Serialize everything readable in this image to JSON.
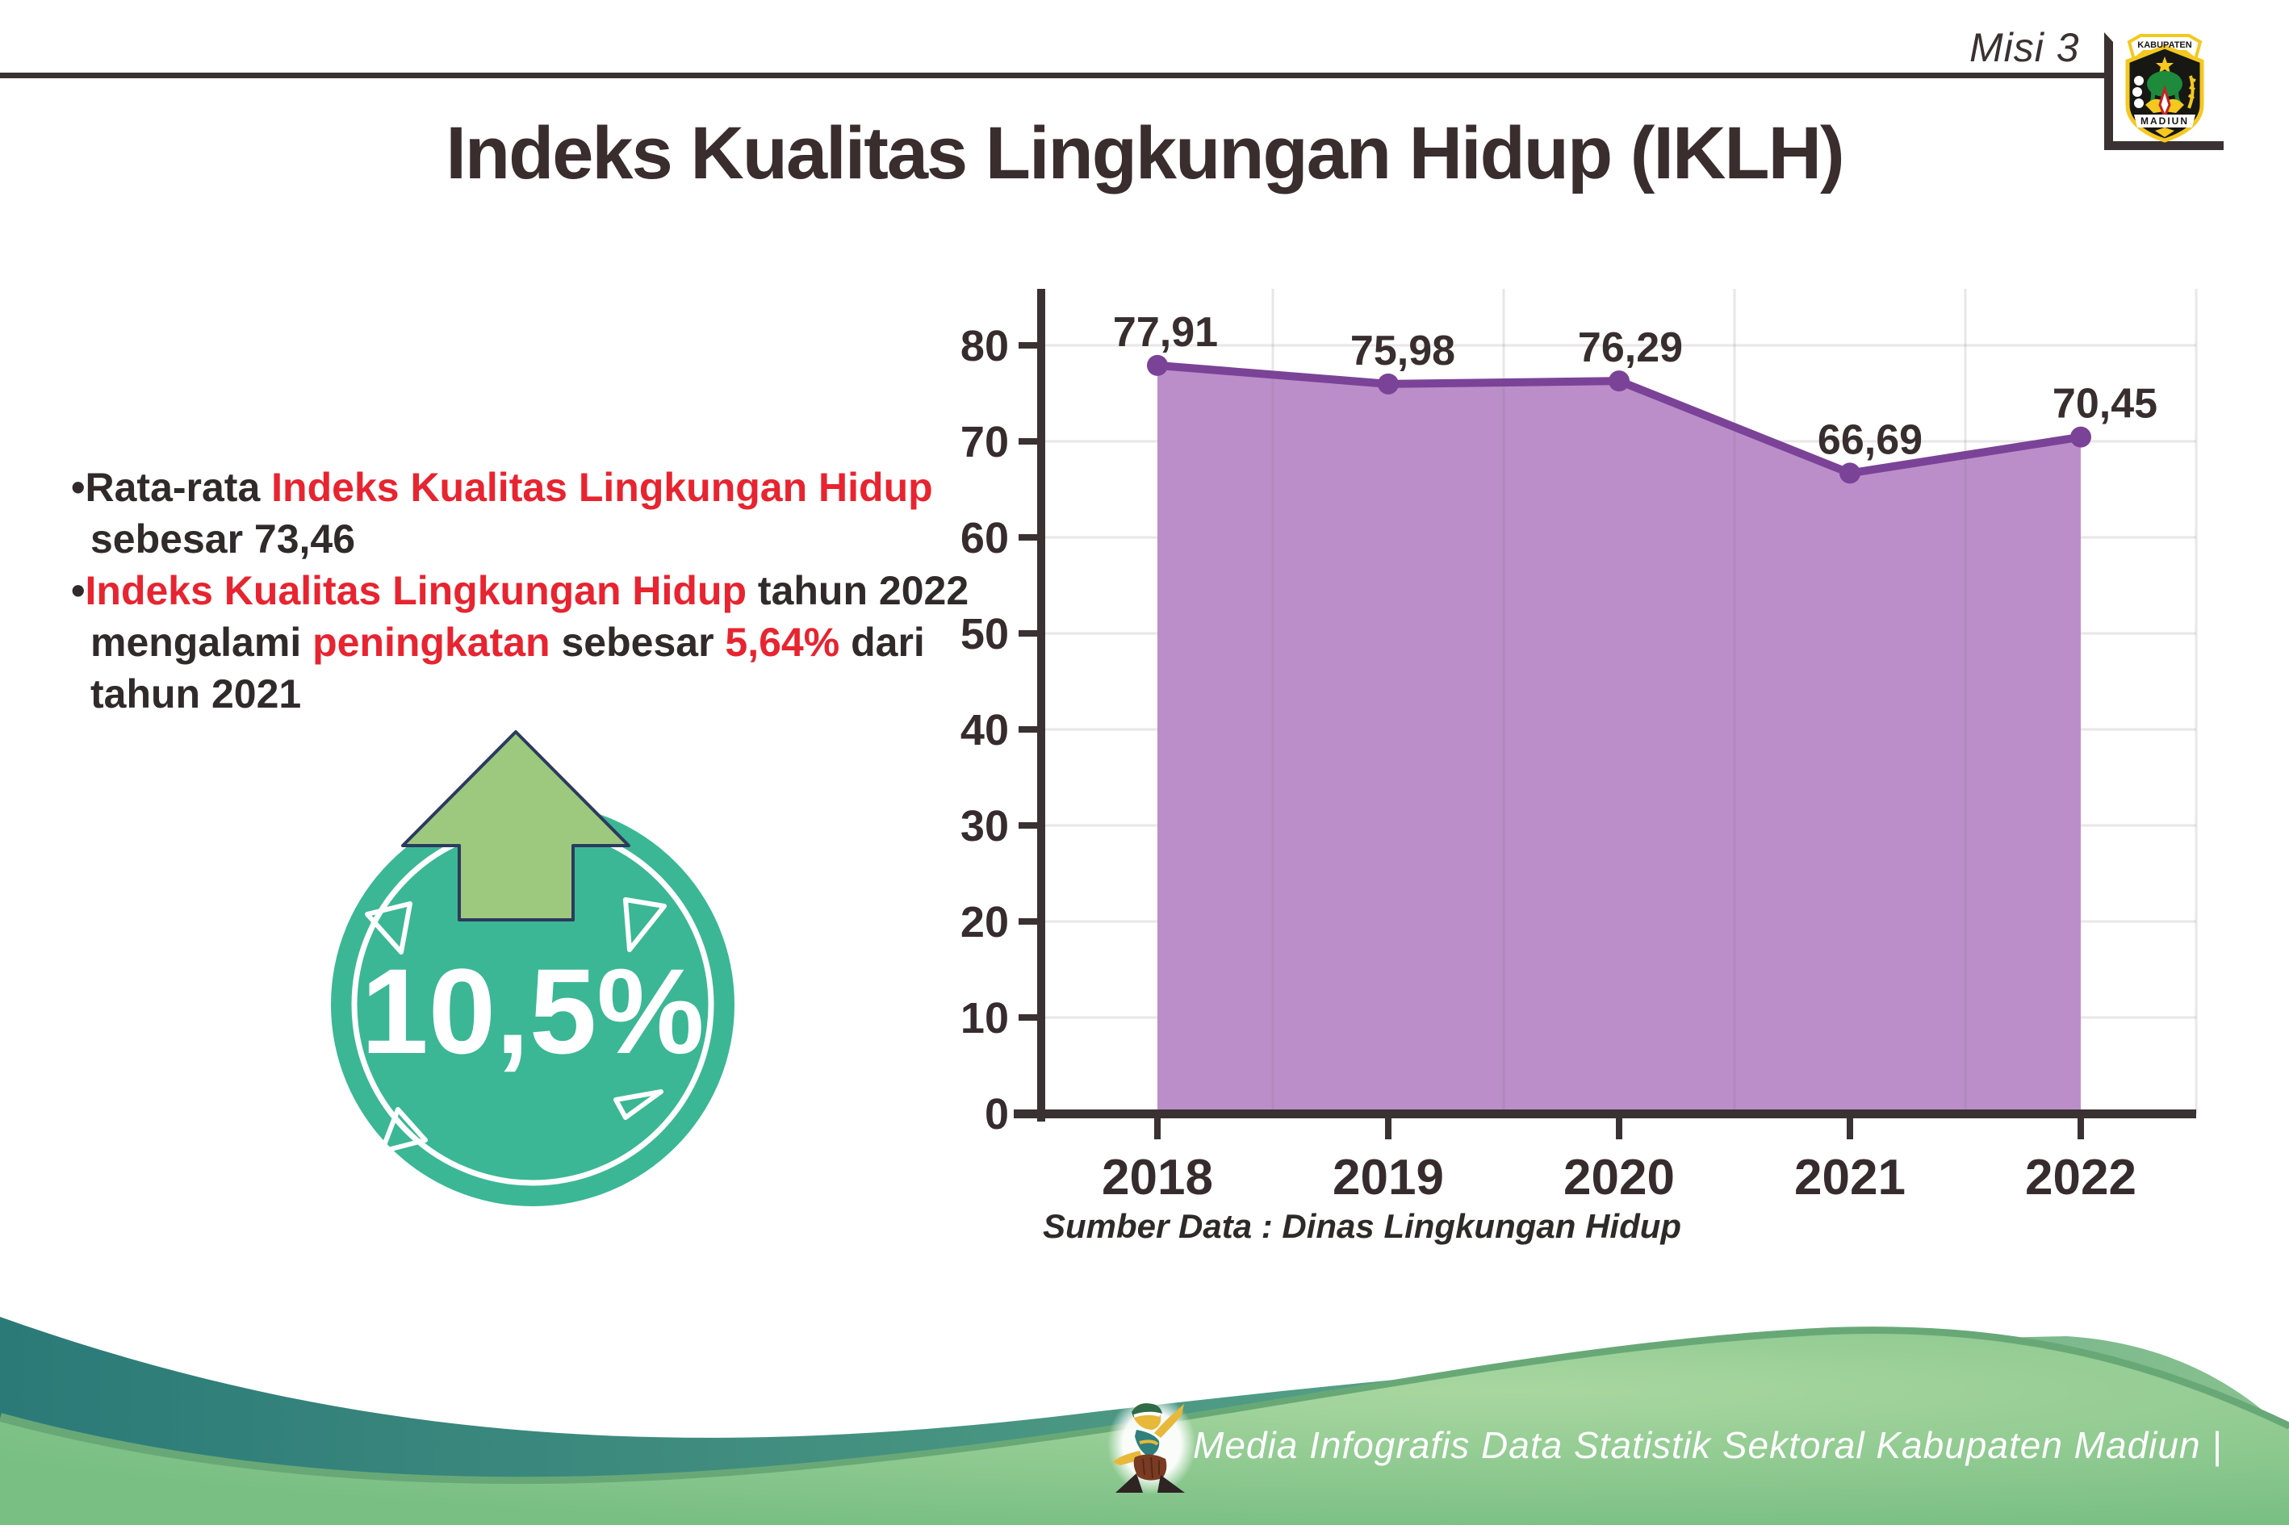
{
  "header": {
    "misi_label": "Misi 3",
    "title": "Indeks Kualitas Lingkungan Hidup (IKLH)"
  },
  "logo": {
    "top_text": "KABUPATEN",
    "bottom_text": "MADIUN"
  },
  "bullets": {
    "marker": "•",
    "b1": {
      "black1": "Rata-rata ",
      "red1": "Indeks Kualitas Lingkungan Hidup",
      "line2": "sebesar 73,46"
    },
    "b2": {
      "red1": "Indeks Kualitas Lingkungan Hidup",
      "black1": " tahun 2022",
      "black2": "mengalami ",
      "red2": "peningkatan",
      "black3": " sebesar ",
      "red3": "5,64%",
      "black4": " dari",
      "line3": "tahun 2021"
    }
  },
  "badge": {
    "value": "10,5%",
    "circle_color": "#3bb795",
    "arrow_color": "#9cc97e",
    "arrow_outline": "#2d3a5e"
  },
  "chart_data": {
    "type": "area",
    "title": "",
    "xlabel": "",
    "ylabel": "",
    "categories": [
      "2018",
      "2019",
      "2020",
      "2021",
      "2022"
    ],
    "values": [
      77.91,
      75.98,
      76.29,
      66.69,
      70.45
    ],
    "value_labels": [
      "77,91",
      "75,98",
      "76,29",
      "66,69",
      "70,45"
    ],
    "ylim": [
      0,
      80
    ],
    "yticks": [
      0,
      10,
      20,
      30,
      40,
      50,
      60,
      70,
      80
    ],
    "grid": true,
    "legend": false,
    "fill_color": "#bb8ec9",
    "line_color": "#7b4397",
    "marker_color": "#7b4397",
    "axis_color": "#3a3132"
  },
  "source_note": "Sumber Data : Dinas Lingkungan Hidup",
  "footer": {
    "credit": "Media Infografis Data Statistik Sektoral Kabupaten Madiun |",
    "teal_dark": "#2b7a78",
    "green_light": "#7cc287"
  },
  "colors": {
    "accent_red": "#e72430",
    "text_dark": "#3a2d2d",
    "rule": "#3a3132"
  }
}
